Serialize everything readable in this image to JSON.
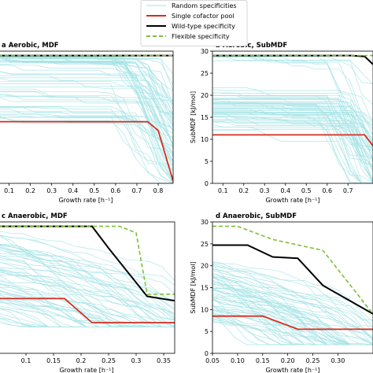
{
  "legend": {
    "entries": [
      {
        "label": "Random specificities",
        "color": "#a6e3e6",
        "style": "thin"
      },
      {
        "label": "Single cofactor pool",
        "color": "#d62c1f",
        "style": "solid"
      },
      {
        "label": "Wild-type specificity",
        "color": "#000000",
        "style": "solid"
      },
      {
        "label": "Flexible specificity",
        "color": "#7fbf3a",
        "style": "dashed"
      }
    ]
  },
  "chart_data": [
    {
      "type": "line",
      "panel": "a",
      "title": "Aerobic, MDF",
      "xlabel": "Growth rate [h⁻¹]",
      "ylabel": "",
      "xlim": [
        0.05,
        0.87
      ],
      "ylim": [
        0,
        30
      ],
      "xticks": [
        "0.1",
        "0.2",
        "0.3",
        "0.4",
        "0.5",
        "0.6",
        "0.7",
        "0.8"
      ],
      "yticks": [],
      "series": [
        {
          "name": "Single cofactor pool",
          "x": [
            0.05,
            0.7,
            0.75,
            0.8,
            0.87
          ],
          "y": [
            14,
            14,
            14,
            12,
            0.5
          ]
        },
        {
          "name": "Wild-type specificity",
          "x": [
            0.05,
            0.8,
            0.87
          ],
          "y": [
            29,
            29,
            29
          ]
        },
        {
          "name": "Flexible specificity",
          "x": [
            0.05,
            0.8,
            0.87
          ],
          "y": [
            29,
            29,
            29
          ]
        }
      ]
    },
    {
      "type": "line",
      "panel": "b",
      "title": "Aerobic, SubMDF",
      "xlabel": "Growth rate [h⁻¹]",
      "ylabel": "SubMDF [kJ/mol]",
      "xlim": [
        0.05,
        0.82
      ],
      "ylim": [
        0,
        30
      ],
      "xticks": [
        "0.1",
        "0.2",
        "0.3",
        "0.4",
        "0.5",
        "0.6",
        "0.7"
      ],
      "yticks": [
        "0",
        "5",
        "10",
        "15",
        "20",
        "25",
        "30"
      ],
      "series": [
        {
          "name": "Single cofactor pool",
          "x": [
            0.05,
            0.78,
            0.82
          ],
          "y": [
            11,
            11,
            8.5
          ]
        },
        {
          "name": "Wild-type specificity",
          "x": [
            0.05,
            0.72,
            0.78,
            0.82
          ],
          "y": [
            29,
            29,
            28.8,
            27
          ]
        },
        {
          "name": "Flexible specificity",
          "x": [
            0.05,
            0.78,
            0.82
          ],
          "y": [
            29,
            29,
            29
          ]
        }
      ]
    },
    {
      "type": "line",
      "panel": "c",
      "title": "Anaerobic, MDF",
      "xlabel": "Growth rate [h⁻¹]",
      "ylabel": "",
      "xlim": [
        0.05,
        0.37
      ],
      "ylim": [
        0,
        30
      ],
      "xticks": [
        "0.1",
        "0.15",
        "0.2",
        "0.25",
        "0.3",
        "0.35"
      ],
      "yticks": [],
      "series": [
        {
          "name": "Single cofactor pool",
          "x": [
            0.05,
            0.17,
            0.22,
            0.37
          ],
          "y": [
            12.5,
            12.5,
            7,
            7
          ]
        },
        {
          "name": "Wild-type specificity",
          "x": [
            0.05,
            0.22,
            0.25,
            0.32,
            0.37
          ],
          "y": [
            29,
            29,
            24,
            13,
            12
          ]
        },
        {
          "name": "Flexible specificity",
          "x": [
            0.05,
            0.27,
            0.3,
            0.32,
            0.37
          ],
          "y": [
            29,
            29,
            27.5,
            13.5,
            13.5
          ]
        }
      ]
    },
    {
      "type": "line",
      "panel": "d",
      "title": "Anaerobic, SubMDF",
      "xlabel": "Growth rate [h⁻¹]",
      "ylabel": "SubMDF [kJ/mol]",
      "xlim": [
        0.05,
        0.37
      ],
      "ylim": [
        0,
        30
      ],
      "xticks": [
        "0.05",
        "0.10",
        "0.15",
        "0.20",
        "0.25",
        "0.30"
      ],
      "yticks": [
        "0",
        "5",
        "10",
        "15",
        "20",
        "25",
        "30"
      ],
      "series": [
        {
          "name": "Single cofactor pool",
          "x": [
            0.05,
            0.15,
            0.22,
            0.37
          ],
          "y": [
            8.5,
            8.5,
            5.5,
            5.5
          ]
        },
        {
          "name": "Wild-type specificity",
          "x": [
            0.05,
            0.12,
            0.17,
            0.22,
            0.27,
            0.37
          ],
          "y": [
            24.7,
            24.7,
            22,
            21.7,
            15.5,
            9
          ]
        },
        {
          "name": "Flexible specificity",
          "x": [
            0.05,
            0.1,
            0.17,
            0.27,
            0.37
          ],
          "y": [
            29,
            29,
            26,
            23.5,
            9
          ]
        }
      ]
    }
  ]
}
